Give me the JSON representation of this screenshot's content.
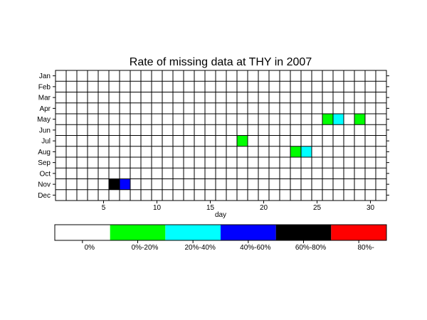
{
  "chart_data": {
    "type": "heatmap",
    "title": "Rate of missing data at THY in 2007",
    "xlabel": "day",
    "ylabel": "",
    "x_range": [
      0.5,
      31.5
    ],
    "x_ticks": [
      5,
      10,
      15,
      20,
      25,
      30
    ],
    "months": [
      "Jan",
      "Feb",
      "Mar",
      "Apr",
      "May",
      "Jun",
      "Jul",
      "Aug",
      "Sep",
      "Oct",
      "Nov",
      "Dec"
    ],
    "days": 31,
    "grid": true,
    "legend": {
      "placement": "bottom",
      "bins": [
        {
          "label": "0%",
          "color": "#ffffff"
        },
        {
          "label": "0%-20%",
          "color": "#00ff00"
        },
        {
          "label": "20%-40%",
          "color": "#00ffff"
        },
        {
          "label": "40%-60%",
          "color": "#0000ff"
        },
        {
          "label": "60%-80%",
          "color": "#000000"
        },
        {
          "label": "80%-",
          "color": "#ff0000"
        }
      ]
    },
    "cells": [
      {
        "month": "May",
        "day": 26,
        "bin": 1
      },
      {
        "month": "May",
        "day": 27,
        "bin": 2
      },
      {
        "month": "May",
        "day": 29,
        "bin": 1
      },
      {
        "month": "Jul",
        "day": 18,
        "bin": 1
      },
      {
        "month": "Aug",
        "day": 23,
        "bin": 1
      },
      {
        "month": "Aug",
        "day": 24,
        "bin": 2
      },
      {
        "month": "Nov",
        "day": 6,
        "bin": 4
      },
      {
        "month": "Nov",
        "day": 7,
        "bin": 3
      }
    ]
  }
}
